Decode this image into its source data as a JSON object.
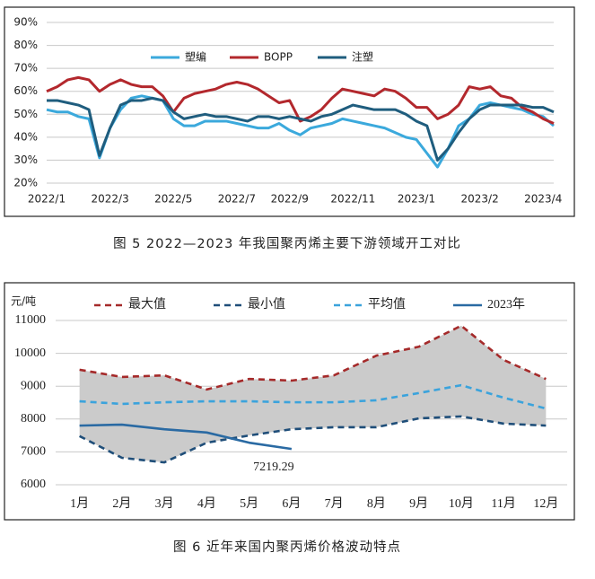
{
  "chart_data": [
    {
      "type": "line",
      "caption": "图 5  2022—2023 年我国聚丙烯主要下游领域开工对比",
      "categories": [
        "2022/1",
        null,
        null,
        null,
        null,
        null,
        "2022/3",
        null,
        null,
        null,
        null,
        null,
        "2022/5",
        null,
        null,
        null,
        null,
        null,
        "2022/7",
        null,
        null,
        null,
        null,
        "2022/9",
        null,
        null,
        null,
        null,
        null,
        "2022/11",
        null,
        null,
        null,
        null,
        null,
        "2023/1",
        null,
        null,
        null,
        null,
        null,
        "2023/2",
        null,
        null,
        null,
        null,
        null,
        "2023/4",
        null
      ],
      "series": [
        {
          "name": "塑编",
          "color": "#3ba9dc",
          "values": [
            52,
            51,
            51,
            49,
            48,
            31,
            44,
            52,
            57,
            58,
            57,
            56,
            48,
            45,
            45,
            47,
            47,
            47,
            46,
            45,
            44,
            44,
            46,
            43,
            41,
            44,
            45,
            46,
            48,
            47,
            46,
            45,
            44,
            42,
            40,
            39,
            33,
            27,
            35,
            45,
            48,
            54,
            55,
            54,
            53,
            52,
            50,
            49,
            45
          ]
        },
        {
          "name": "BOPP",
          "color": "#b3282d",
          "values": [
            60,
            62,
            65,
            66,
            65,
            60,
            63,
            65,
            63,
            62,
            62,
            58,
            51,
            57,
            59,
            60,
            61,
            63,
            64,
            63,
            61,
            58,
            55,
            56,
            47,
            49,
            52,
            57,
            61,
            60,
            59,
            58,
            61,
            60,
            57,
            53,
            53,
            48,
            50,
            54,
            62,
            61,
            62,
            58,
            57,
            53,
            51,
            48,
            46
          ]
        },
        {
          "name": "注塑",
          "color": "#1f5d7e",
          "values": [
            56,
            56,
            55,
            54,
            52,
            32,
            44,
            54,
            56,
            56,
            57,
            56,
            51,
            48,
            49,
            50,
            49,
            49,
            48,
            47,
            49,
            49,
            48,
            49,
            48,
            47,
            49,
            50,
            52,
            54,
            53,
            52,
            52,
            52,
            50,
            47,
            45,
            30,
            35,
            42,
            48,
            52,
            54,
            54,
            54,
            54,
            53,
            53,
            51
          ]
        }
      ],
      "ylim": [
        20,
        90
      ],
      "yticks": [
        {
          "value": 20,
          "label": "20%"
        },
        {
          "value": 30,
          "label": "30%"
        },
        {
          "value": 40,
          "label": "40%"
        },
        {
          "value": 50,
          "label": "50%"
        },
        {
          "value": 60,
          "label": "60%"
        },
        {
          "value": 70,
          "label": "70%"
        },
        {
          "value": 80,
          "label": "80%"
        },
        {
          "value": 90,
          "label": "90%"
        }
      ],
      "grid": true,
      "legend": "top"
    },
    {
      "type": "line",
      "caption": "图 6  近年来国内聚丙烯价格波动特点",
      "ylabel": "元/吨",
      "categories": [
        "1月",
        "2月",
        "3月",
        "4月",
        "5月",
        "6月",
        "7月",
        "8月",
        "9月",
        "10月",
        "11月",
        "12月"
      ],
      "series": [
        {
          "name": "最大值",
          "color": "#a52a2a",
          "dash": true,
          "values": [
            9500,
            9280,
            9330,
            8900,
            9220,
            9170,
            9330,
            9930,
            10200,
            10840,
            9800,
            9220
          ]
        },
        {
          "name": "最小值",
          "color": "#1f4e79",
          "dash": true,
          "values": [
            7480,
            6820,
            6680,
            7280,
            7500,
            7690,
            7750,
            7750,
            8020,
            8080,
            7860,
            7800
          ]
        },
        {
          "name": "平均值",
          "color": "#3ba3dc",
          "dash": true,
          "values": [
            8540,
            8460,
            8510,
            8540,
            8540,
            8510,
            8510,
            8570,
            8790,
            9030,
            8650,
            8320
          ]
        },
        {
          "name": "2023年",
          "color": "#2a6aa3",
          "dash": false,
          "values": [
            7800,
            7830,
            7690,
            7590,
            7280,
            7090,
            null,
            null,
            null,
            null,
            null,
            null
          ]
        }
      ],
      "shade": "#cbcbcb",
      "annotation": "7219.29",
      "ylim": [
        6000,
        11000
      ],
      "yticks": [
        6000,
        7000,
        8000,
        9000,
        10000,
        11000
      ],
      "grid": true,
      "legend": "top"
    }
  ]
}
